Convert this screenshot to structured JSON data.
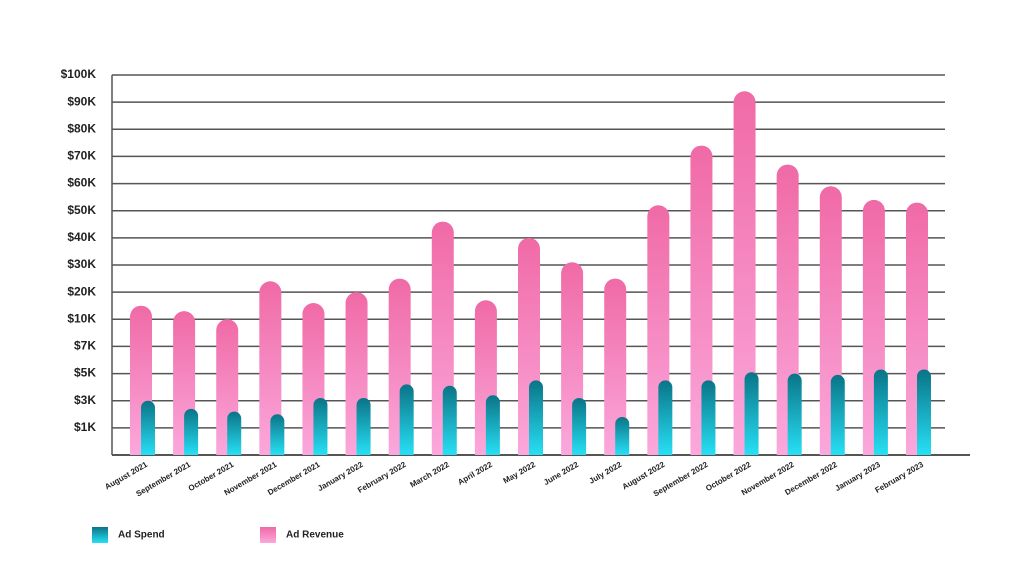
{
  "chart_data": {
    "type": "bar",
    "categories": [
      "August 2021",
      "September 2021",
      "October 2021",
      "November 2021",
      "December 2021",
      "January 2022",
      "February 2022",
      "March 2022",
      "April 2022",
      "May 2022",
      "June 2022",
      "July 2022",
      "August 2022",
      "September 2022",
      "October 2022",
      "November 2022",
      "December 2022",
      "January 2023",
      "February 2023"
    ],
    "series": [
      {
        "name": "Ad Spend",
        "color": "#0a7487",
        "values": [
          3000,
          2400,
          2200,
          2000,
          3200,
          3200,
          4200,
          4100,
          3400,
          4500,
          3200,
          1800,
          4500,
          4500,
          5100,
          5000,
          4900,
          5300,
          5300
        ]
      },
      {
        "name": "Ad Revenue",
        "color": "#f06aa6",
        "values": [
          15000,
          13000,
          10000,
          24000,
          16000,
          20000,
          25000,
          46000,
          17000,
          40000,
          31000,
          25000,
          52000,
          74000,
          94000,
          67000,
          59000,
          54000,
          53000
        ]
      }
    ],
    "ylim": [
      0,
      100000
    ],
    "yticks": [
      {
        "value": 1000,
        "label": "$1K"
      },
      {
        "value": 3000,
        "label": "$3K"
      },
      {
        "value": 5000,
        "label": "$5K"
      },
      {
        "value": 7000,
        "label": "$7K"
      },
      {
        "value": 10000,
        "label": "$10K"
      },
      {
        "value": 20000,
        "label": "$20K"
      },
      {
        "value": 30000,
        "label": "$30K"
      },
      {
        "value": 40000,
        "label": "$40K"
      },
      {
        "value": 50000,
        "label": "$50K"
      },
      {
        "value": 60000,
        "label": "$60K"
      },
      {
        "value": 70000,
        "label": "$70K"
      },
      {
        "value": 80000,
        "label": "$80K"
      },
      {
        "value": 90000,
        "label": "$90K"
      },
      {
        "value": 100000,
        "label": "$100K"
      }
    ],
    "grid": true
  }
}
